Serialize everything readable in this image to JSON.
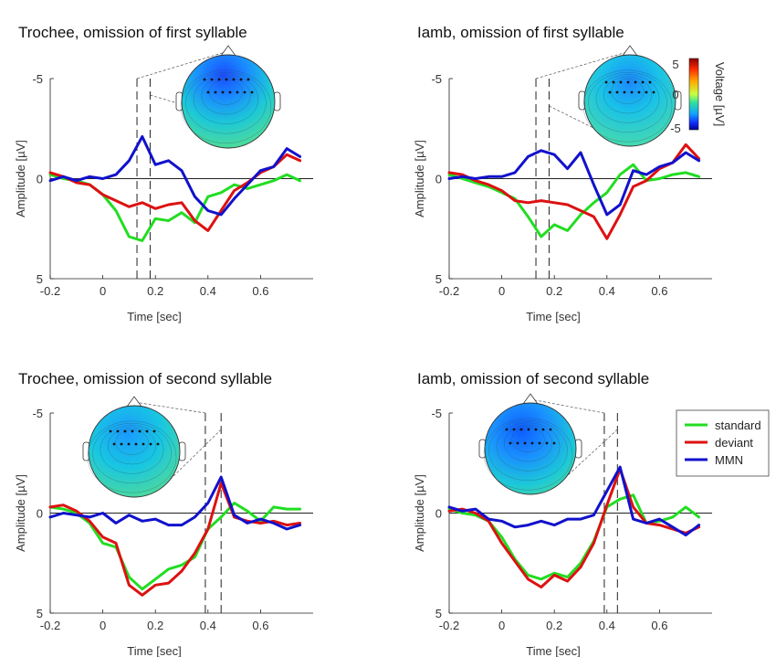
{
  "colors": {
    "standard": "#22dd22",
    "deviant": "#dd1111",
    "MMN": "#1111cc"
  },
  "colorbar": {
    "label": "Voltage [µV]",
    "ticks": [
      5,
      0,
      -5
    ],
    "tick_labels": [
      "5",
      "0",
      "-5"
    ],
    "range": [
      -5,
      5
    ]
  },
  "legend": {
    "entries": [
      {
        "name": "standard",
        "series_key": "standard"
      },
      {
        "name": "deviant",
        "series_key": "deviant"
      },
      {
        "name": "MMN",
        "series_key": "MMN"
      }
    ]
  },
  "chart_data": [
    {
      "type": "line",
      "title": "Trochee, omission of first syllable",
      "xlabel": "Time [sec]",
      "ylabel": "Amplitude [µV]",
      "xlim": [
        -0.2,
        0.8
      ],
      "ylim": [
        -5,
        5
      ],
      "y_reversed": true,
      "xticks": [
        -0.2,
        0,
        0.2,
        0.4,
        0.6
      ],
      "xtick_labels": [
        "-0.2",
        "0",
        "0.2",
        "0.4",
        "0.6"
      ],
      "yticks": [
        -5,
        0,
        5
      ],
      "ytick_labels": [
        "-5",
        "0",
        "5"
      ],
      "window": [
        0.13,
        0.18
      ],
      "topo_window_hint": "left",
      "series": [
        {
          "name": "standard",
          "x": [
            -0.2,
            -0.15,
            -0.1,
            -0.05,
            0,
            0.05,
            0.1,
            0.15,
            0.2,
            0.25,
            0.3,
            0.35,
            0.4,
            0.45,
            0.5,
            0.55,
            0.6,
            0.65,
            0.7,
            0.75
          ],
          "y": [
            -0.2,
            0,
            0.1,
            0.3,
            0.8,
            1.6,
            2.9,
            3.1,
            2.0,
            2.1,
            1.7,
            2.2,
            0.9,
            0.7,
            0.3,
            0.5,
            0.3,
            0.1,
            -0.2,
            0.1
          ]
        },
        {
          "name": "deviant",
          "x": [
            -0.2,
            -0.15,
            -0.1,
            -0.05,
            0,
            0.05,
            0.1,
            0.15,
            0.2,
            0.25,
            0.3,
            0.35,
            0.4,
            0.45,
            0.5,
            0.55,
            0.6,
            0.65,
            0.7,
            0.75
          ],
          "y": [
            -0.3,
            -0.1,
            0.2,
            0.3,
            0.8,
            1.1,
            1.4,
            1.2,
            1.5,
            1.3,
            1.2,
            2.1,
            2.6,
            1.6,
            0.6,
            0.2,
            -0.3,
            -0.6,
            -1.2,
            -0.9
          ]
        },
        {
          "name": "MMN",
          "x": [
            -0.2,
            -0.15,
            -0.1,
            -0.05,
            0,
            0.05,
            0.1,
            0.15,
            0.2,
            0.25,
            0.3,
            0.35,
            0.4,
            0.45,
            0.5,
            0.55,
            0.6,
            0.65,
            0.7,
            0.75
          ],
          "y": [
            0.1,
            -0.1,
            0.1,
            -0.1,
            0,
            -0.2,
            -0.9,
            -2.1,
            -0.7,
            -0.9,
            -0.4,
            0.9,
            1.6,
            1.8,
            1.0,
            0.3,
            -0.4,
            -0.6,
            -1.5,
            -1.1
          ]
        }
      ]
    },
    {
      "type": "line",
      "title": "Iamb, omission of first syllable",
      "xlabel": "Time [sec]",
      "ylabel": "Amplitude [µV]",
      "xlim": [
        -0.2,
        0.8
      ],
      "ylim": [
        -5,
        5
      ],
      "y_reversed": true,
      "xticks": [
        -0.2,
        0,
        0.2,
        0.4,
        0.6
      ],
      "xtick_labels": [
        "-0.2",
        "0",
        "0.2",
        "0.4",
        "0.6"
      ],
      "yticks": [
        -5,
        0,
        5
      ],
      "ytick_labels": [
        "-5",
        "0",
        "5"
      ],
      "window": [
        0.13,
        0.18
      ],
      "topo_window_hint": "right",
      "series": [
        {
          "name": "standard",
          "x": [
            -0.2,
            -0.15,
            -0.1,
            -0.05,
            0,
            0.05,
            0.1,
            0.15,
            0.2,
            0.25,
            0.3,
            0.35,
            0.4,
            0.45,
            0.5,
            0.55,
            0.6,
            0.65,
            0.7,
            0.75
          ],
          "y": [
            -0.2,
            0,
            0.2,
            0.4,
            0.7,
            1.0,
            1.9,
            2.9,
            2.3,
            2.6,
            1.8,
            1.2,
            0.7,
            -0.2,
            -0.7,
            0.1,
            0,
            -0.2,
            -0.3,
            -0.1
          ]
        },
        {
          "name": "deviant",
          "x": [
            -0.2,
            -0.15,
            -0.1,
            -0.05,
            0,
            0.05,
            0.1,
            0.15,
            0.2,
            0.25,
            0.3,
            0.35,
            0.4,
            0.45,
            0.5,
            0.55,
            0.6,
            0.65,
            0.7,
            0.75
          ],
          "y": [
            -0.3,
            -0.2,
            0.1,
            0.3,
            0.6,
            1.1,
            1.2,
            1.1,
            1.2,
            1.3,
            1.6,
            1.9,
            3.0,
            1.8,
            0.4,
            0.1,
            -0.5,
            -0.8,
            -1.7,
            -1.0
          ]
        },
        {
          "name": "MMN",
          "x": [
            -0.2,
            -0.15,
            -0.1,
            -0.05,
            0,
            0.05,
            0.1,
            0.15,
            0.2,
            0.25,
            0.3,
            0.35,
            0.4,
            0.45,
            0.5,
            0.55,
            0.6,
            0.65,
            0.7,
            0.75
          ],
          "y": [
            0,
            -0.1,
            0,
            -0.1,
            -0.1,
            -0.3,
            -1.1,
            -1.4,
            -1.2,
            -0.5,
            -1.3,
            0.3,
            1.8,
            1.3,
            -0.4,
            -0.2,
            -0.6,
            -0.8,
            -1.3,
            -0.9
          ]
        }
      ]
    },
    {
      "type": "line",
      "title": "Trochee, omission of second syllable",
      "xlabel": "Time [sec]",
      "ylabel": "Amplitude [µV]",
      "xlim": [
        -0.2,
        0.8
      ],
      "ylim": [
        -5,
        5
      ],
      "y_reversed": true,
      "xticks": [
        -0.2,
        0,
        0.2,
        0.4,
        0.6
      ],
      "xtick_labels": [
        "-0.2",
        "0",
        "0.2",
        "0.4",
        "0.6"
      ],
      "yticks": [
        -5,
        0,
        5
      ],
      "ytick_labels": [
        "-5",
        "0",
        "5"
      ],
      "window": [
        0.39,
        0.45
      ],
      "topo_window_hint": "left",
      "series": [
        {
          "name": "standard",
          "x": [
            -0.2,
            -0.15,
            -0.1,
            -0.05,
            0,
            0.05,
            0.1,
            0.15,
            0.2,
            0.25,
            0.3,
            0.35,
            0.4,
            0.45,
            0.5,
            0.55,
            0.6,
            0.65,
            0.7,
            0.75
          ],
          "y": [
            -0.3,
            -0.2,
            0,
            0.5,
            1.5,
            1.7,
            3.2,
            3.8,
            3.3,
            2.8,
            2.6,
            2.2,
            0.8,
            0.2,
            -0.5,
            -0.1,
            0.4,
            -0.3,
            -0.2,
            -0.2
          ]
        },
        {
          "name": "deviant",
          "x": [
            -0.2,
            -0.15,
            -0.1,
            -0.05,
            0,
            0.05,
            0.1,
            0.15,
            0.2,
            0.25,
            0.3,
            0.35,
            0.4,
            0.45,
            0.5,
            0.55,
            0.6,
            0.65,
            0.7,
            0.75
          ],
          "y": [
            -0.3,
            -0.4,
            -0.1,
            0.4,
            1.2,
            1.5,
            3.6,
            4.1,
            3.6,
            3.5,
            2.9,
            2.0,
            0.8,
            -1.5,
            0.2,
            0.4,
            0.5,
            0.4,
            0.6,
            0.5
          ]
        },
        {
          "name": "MMN",
          "x": [
            -0.2,
            -0.15,
            -0.1,
            -0.05,
            0,
            0.05,
            0.1,
            0.15,
            0.2,
            0.25,
            0.3,
            0.35,
            0.4,
            0.45,
            0.5,
            0.55,
            0.6,
            0.65,
            0.7,
            0.75
          ],
          "y": [
            0.2,
            0,
            0.1,
            0.2,
            0,
            0.5,
            0.1,
            0.4,
            0.3,
            0.6,
            0.6,
            0.2,
            -0.5,
            -1.8,
            0.1,
            0.5,
            0.3,
            0.5,
            0.8,
            0.6
          ]
        }
      ]
    },
    {
      "type": "line",
      "title": "Iamb, omission of second syllable",
      "xlabel": "Time [sec]",
      "ylabel": "Amplitude [µV]",
      "xlim": [
        -0.2,
        0.8
      ],
      "ylim": [
        -5,
        5
      ],
      "y_reversed": true,
      "xticks": [
        -0.2,
        0,
        0.2,
        0.4,
        0.6
      ],
      "xtick_labels": [
        "-0.2",
        "0",
        "0.2",
        "0.4",
        "0.6"
      ],
      "yticks": [
        -5,
        0,
        5
      ],
      "ytick_labels": [
        "-5",
        "0",
        "5"
      ],
      "window": [
        0.39,
        0.44
      ],
      "topo_window_hint": "left",
      "series": [
        {
          "name": "standard",
          "x": [
            -0.2,
            -0.15,
            -0.1,
            -0.05,
            0,
            0.05,
            0.1,
            0.15,
            0.2,
            0.25,
            0.3,
            0.35,
            0.4,
            0.45,
            0.5,
            0.55,
            0.6,
            0.65,
            0.7,
            0.75
          ],
          "y": [
            -0.2,
            0,
            0.1,
            0.4,
            1.2,
            2.3,
            3.1,
            3.3,
            3.0,
            3.2,
            2.5,
            1.4,
            -0.3,
            -0.7,
            -0.9,
            0.5,
            0.4,
            0.2,
            -0.3,
            0.2
          ]
        },
        {
          "name": "deviant",
          "x": [
            -0.2,
            -0.15,
            -0.1,
            -0.05,
            0,
            0.05,
            0.1,
            0.15,
            0.2,
            0.25,
            0.3,
            0.35,
            0.4,
            0.45,
            0.5,
            0.55,
            0.6,
            0.65,
            0.7,
            0.75
          ],
          "y": [
            -0.1,
            -0.2,
            0,
            0.4,
            1.5,
            2.4,
            3.3,
            3.7,
            3.1,
            3.4,
            2.7,
            1.5,
            -0.4,
            -2.2,
            -0.3,
            0.5,
            0.6,
            0.8,
            1.0,
            0.7
          ]
        },
        {
          "name": "MMN",
          "x": [
            -0.2,
            -0.15,
            -0.1,
            -0.05,
            0,
            0.05,
            0.1,
            0.15,
            0.2,
            0.25,
            0.3,
            0.35,
            0.4,
            0.45,
            0.5,
            0.55,
            0.6,
            0.65,
            0.7,
            0.75
          ],
          "y": [
            -0.3,
            -0.1,
            -0.2,
            0.3,
            0.4,
            0.7,
            0.6,
            0.4,
            0.6,
            0.3,
            0.3,
            0.1,
            -1.1,
            -2.3,
            0.3,
            0.5,
            0.3,
            0.7,
            1.1,
            0.6
          ]
        }
      ]
    }
  ]
}
